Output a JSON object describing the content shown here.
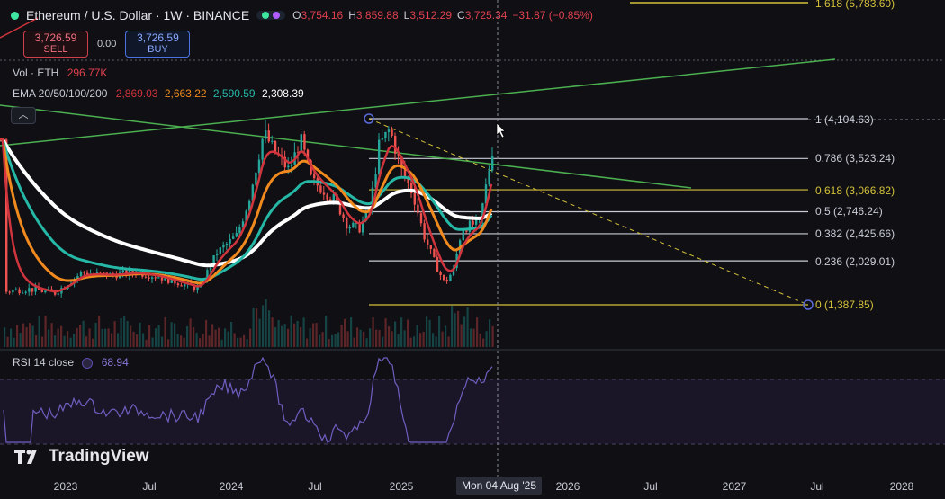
{
  "header": {
    "symbol": "Ethereum / U.S. Dollar · 1W · BINANCE",
    "ohlc": [
      {
        "k": "O",
        "v": "3,754.16"
      },
      {
        "k": "H",
        "v": "3,859.88"
      },
      {
        "k": "L",
        "v": "3,512.29"
      },
      {
        "k": "C",
        "v": "3,725.34"
      },
      {
        "k": "",
        "v": "−31.87 (−0.85%)"
      }
    ]
  },
  "trade": {
    "sell_price": "3,726.59",
    "sell_label": "SELL",
    "spread": "0.00",
    "buy_price": "3,726.59",
    "buy_label": "BUY"
  },
  "volume": {
    "label": "Vol · ETH",
    "value": "296.77K"
  },
  "ema": {
    "label": "EMA 20/50/100/200",
    "values": [
      "2,869.03",
      "2,663.22",
      "2,590.59",
      "2,308.39"
    ],
    "colors": [
      "#d0343c",
      "#f08a1e",
      "#26b8a6",
      "#ffffff"
    ]
  },
  "collapse_icon": "chevron-up-icon",
  "fib_levels": [
    {
      "label": "1.618 (5,783.60)",
      "price": 5783.6,
      "color": "#d4c13a"
    },
    {
      "label": "1 (4,104.63)",
      "price": 4104.63,
      "color": "#c9ccd6"
    },
    {
      "label": "0.786 (3,523.24)",
      "price": 3523.24,
      "color": "#c9ccd6"
    },
    {
      "label": "0.618 (3,066.82)",
      "price": 3066.82,
      "color": "#d4c13a"
    },
    {
      "label": "0.5 (2,746.24)",
      "price": 2746.24,
      "color": "#c9ccd6"
    },
    {
      "label": "0.382 (2,425.66)",
      "price": 2425.66,
      "color": "#c9ccd6"
    },
    {
      "label": "0.236 (2,029.01)",
      "price": 2029.01,
      "color": "#c9ccd6"
    },
    {
      "label": "0 (1,387.85)",
      "price": 1387.85,
      "color": "#d4c13a"
    }
  ],
  "rsi": {
    "label": "RSI 14 close",
    "value": "68.94"
  },
  "logo": "TradingView",
  "xaxis": [
    "2023",
    "Jul",
    "2024",
    "Jul",
    "2025",
    "2026",
    "Jul",
    "2027",
    "Jul",
    "2028"
  ],
  "cursor_date": "Mon 04 Aug '25",
  "colors": {
    "up": "#26a69a",
    "down": "#ef5350",
    "trend": "#4caf50",
    "rsi": "#6e5fc0"
  }
}
